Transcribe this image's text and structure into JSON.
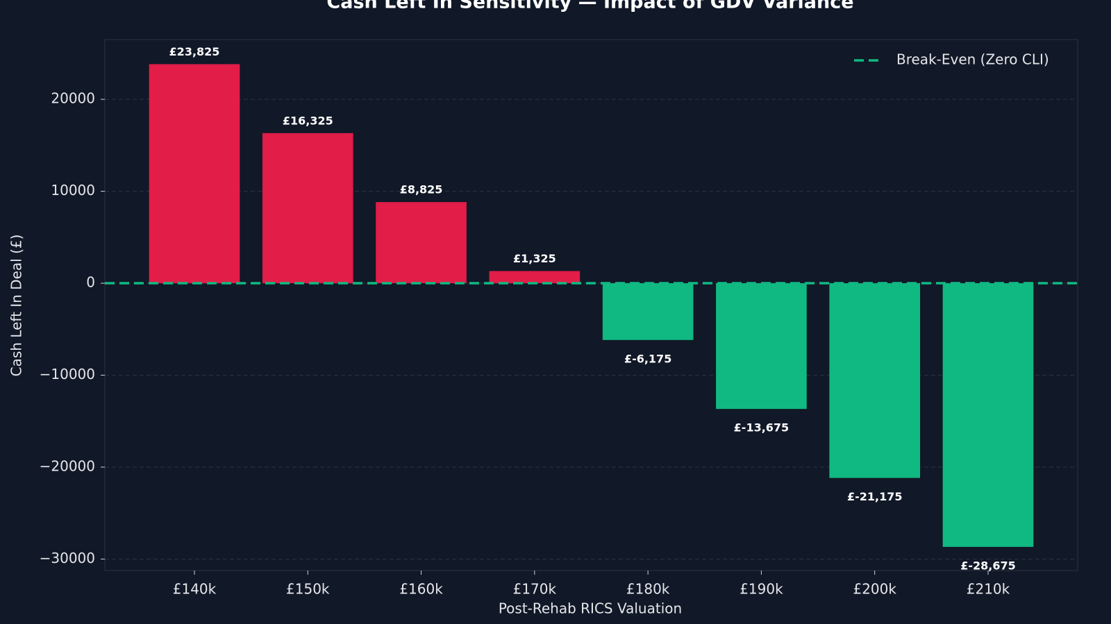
{
  "chart_data": {
    "type": "bar",
    "title": "Cash Left In Sensitivity — Impact of GDV Variance",
    "xlabel": "Post-Rehab RICS Valuation",
    "ylabel": "Cash Left In Deal (£)",
    "categories": [
      "£140k",
      "£150k",
      "£160k",
      "£170k",
      "£180k",
      "£190k",
      "£200k",
      "£210k"
    ],
    "values": [
      23825,
      16325,
      8825,
      1325,
      -6175,
      -13675,
      -21175,
      -28675
    ],
    "value_labels": [
      "£23,825",
      "£16,325",
      "£8,825",
      "£1,325",
      "£-6,175",
      "£-13,675",
      "£-21,175",
      "£-28,675"
    ],
    "colors": [
      "#e11d48",
      "#e11d48",
      "#e11d48",
      "#e11d48",
      "#10b981",
      "#10b981",
      "#10b981",
      "#10b981"
    ],
    "ylim": [
      -31250,
      26500
    ],
    "yticks": [
      {
        "value": -30000,
        "label": "−30000"
      },
      {
        "value": -20000,
        "label": "−20000"
      },
      {
        "value": -10000,
        "label": "−10000"
      },
      0,
      10000,
      20000
    ],
    "grid": true,
    "reference_line": {
      "value": 0,
      "label": "Break-Even (Zero CLI)",
      "color": "#10b981"
    },
    "legend": "upper right"
  }
}
